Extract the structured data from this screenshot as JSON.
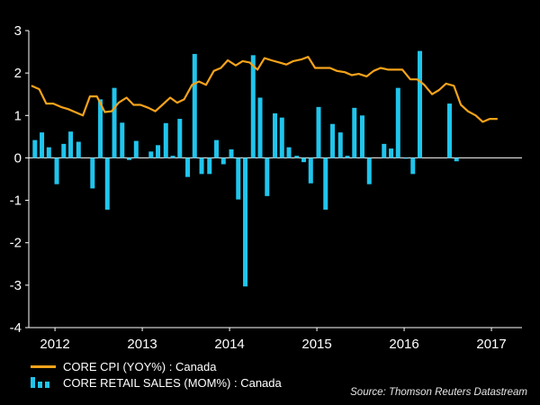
{
  "chart_data": {
    "type": "bar+line",
    "ylim": [
      -4,
      3
    ],
    "yticks": [
      "3",
      "2",
      "1",
      "0",
      "-1",
      "-2",
      "-3",
      "-4"
    ],
    "xlim": [
      2011.8,
      2017.45
    ],
    "xticks": [
      {
        "label": "2012",
        "value": 2012.1
      },
      {
        "label": "2013",
        "value": 2013.1
      },
      {
        "label": "2014",
        "value": 2014.1
      },
      {
        "label": "2015",
        "value": 2015.1
      },
      {
        "label": "2016",
        "value": 2016.1
      },
      {
        "label": "2017",
        "value": 2017.1
      }
    ],
    "grid": false,
    "legend_position": "bottom-left",
    "series": [
      {
        "name": "CORE CPI (YOY%) : Canada",
        "type": "line",
        "color": "#f5a31a",
        "x": [
          2011.83,
          2011.92,
          2012.0,
          2012.08,
          2012.17,
          2012.25,
          2012.33,
          2012.42,
          2012.5,
          2012.58,
          2012.67,
          2012.75,
          2012.83,
          2012.92,
          2013.0,
          2013.08,
          2013.17,
          2013.25,
          2013.33,
          2013.42,
          2013.5,
          2013.58,
          2013.67,
          2013.75,
          2013.83,
          2013.92,
          2014.0,
          2014.08,
          2014.17,
          2014.25,
          2014.33,
          2014.42,
          2014.5,
          2014.58,
          2014.67,
          2014.75,
          2014.83,
          2014.92,
          2015.0,
          2015.08,
          2015.17,
          2015.25,
          2015.33,
          2015.42,
          2015.5,
          2015.58,
          2015.67,
          2015.75,
          2015.83,
          2015.92,
          2016.0,
          2016.08,
          2016.17,
          2016.25,
          2016.33,
          2016.42,
          2016.5,
          2016.58,
          2016.67,
          2016.75,
          2016.83,
          2016.92,
          2017.0,
          2017.08,
          2017.17
        ],
        "values": [
          1.7,
          1.62,
          1.28,
          1.28,
          1.2,
          1.15,
          1.08,
          1.0,
          1.45,
          1.45,
          1.08,
          1.1,
          1.3,
          1.42,
          1.25,
          1.25,
          1.18,
          1.1,
          1.25,
          1.42,
          1.3,
          1.38,
          1.72,
          1.8,
          1.72,
          2.05,
          2.12,
          2.3,
          2.18,
          2.28,
          2.25,
          2.08,
          2.35,
          2.3,
          2.25,
          2.2,
          2.28,
          2.32,
          2.38,
          2.12,
          2.12,
          2.12,
          2.05,
          2.02,
          1.95,
          1.98,
          1.92,
          2.05,
          2.12,
          2.08,
          2.08,
          2.08,
          1.85,
          1.85,
          1.72,
          1.5,
          1.6,
          1.75,
          1.7,
          1.25,
          1.1,
          1.0,
          0.85,
          0.92,
          0.92
        ]
      },
      {
        "name": "CORE RETAIL SALES (MOM%) : Canada",
        "type": "bar",
        "color": "#20c5ec",
        "x": [
          2011.87,
          2011.95,
          2012.03,
          2012.12,
          2012.2,
          2012.28,
          2012.37,
          2012.45,
          2012.53,
          2012.62,
          2012.7,
          2012.78,
          2012.87,
          2012.95,
          2013.03,
          2013.12,
          2013.2,
          2013.28,
          2013.37,
          2013.45,
          2013.53,
          2013.62,
          2013.7,
          2013.78,
          2013.87,
          2013.95,
          2014.03,
          2014.12,
          2014.2,
          2014.28,
          2014.37,
          2014.45,
          2014.53,
          2014.62,
          2014.7,
          2014.78,
          2014.87,
          2014.95,
          2015.03,
          2015.12,
          2015.2,
          2015.28,
          2015.37,
          2015.45,
          2015.53,
          2015.62,
          2015.7,
          2015.78,
          2015.87,
          2015.95,
          2016.03,
          2016.12,
          2016.2,
          2016.28,
          2016.37,
          2016.45,
          2016.53,
          2016.62,
          2016.7,
          2016.78,
          2016.87,
          2016.95,
          2017.03,
          2017.12
        ],
        "values": [
          0.42,
          0.6,
          0.25,
          -0.62,
          0.33,
          0.62,
          0.38,
          0.0,
          -0.72,
          1.38,
          -1.22,
          1.65,
          0.83,
          -0.05,
          0.4,
          0.0,
          0.15,
          0.3,
          0.82,
          0.05,
          0.92,
          -0.45,
          2.45,
          -0.38,
          -0.38,
          0.42,
          -0.15,
          0.2,
          -0.98,
          -3.03,
          2.42,
          1.42,
          -0.9,
          1.05,
          0.95,
          0.25,
          0.05,
          -0.1,
          -0.6,
          1.2,
          -1.22,
          0.8,
          0.6,
          0.05,
          1.18,
          1.0,
          -0.62,
          0.0,
          0.33,
          0.22,
          1.65,
          -0.02,
          -0.38,
          2.52,
          0.0,
          0.0,
          0.0,
          1.28,
          -0.08,
          0.0,
          0.0,
          0.0,
          0.0,
          0.0
        ]
      }
    ]
  },
  "legend": {
    "cpi_label": "CORE CPI (YOY%) : Canada",
    "retail_label": "CORE RETAIL SALES (MOM%) : Canada"
  },
  "source": "Source: Thomson Reuters Datastream"
}
